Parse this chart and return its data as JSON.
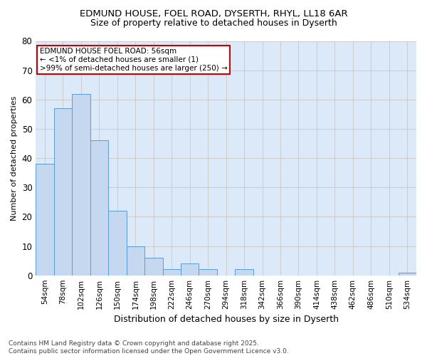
{
  "title_line1": "EDMUND HOUSE, FOEL ROAD, DYSERTH, RHYL, LL18 6AR",
  "title_line2": "Size of property relative to detached houses in Dyserth",
  "xlabel": "Distribution of detached houses by size in Dyserth",
  "ylabel": "Number of detached properties",
  "categories": [
    "54sqm",
    "78sqm",
    "102sqm",
    "126sqm",
    "150sqm",
    "174sqm",
    "198sqm",
    "222sqm",
    "246sqm",
    "270sqm",
    "294sqm",
    "318sqm",
    "342sqm",
    "366sqm",
    "390sqm",
    "414sqm",
    "438sqm",
    "462sqm",
    "486sqm",
    "510sqm",
    "534sqm"
  ],
  "values": [
    38,
    57,
    62,
    46,
    22,
    10,
    6,
    2,
    4,
    2,
    0,
    2,
    0,
    0,
    0,
    0,
    0,
    0,
    0,
    0,
    1
  ],
  "bar_color": "#c5d8f0",
  "bar_edge_color": "#5b9bd5",
  "annotation_line1": "EDMUND HOUSE FOEL ROAD: 56sqm",
  "annotation_line2": "← <1% of detached houses are smaller (1)",
  "annotation_line3": ">99% of semi-detached houses are larger (250) →",
  "annotation_box_color": "#ffffff",
  "annotation_box_edge_color": "#cc0000",
  "grid_color": "#cccccc",
  "background_color": "#dce9f8",
  "ylim": [
    0,
    80
  ],
  "yticks": [
    0,
    10,
    20,
    30,
    40,
    50,
    60,
    70,
    80
  ],
  "footnote": "Contains HM Land Registry data © Crown copyright and database right 2025.\nContains public sector information licensed under the Open Government Licence v3.0."
}
